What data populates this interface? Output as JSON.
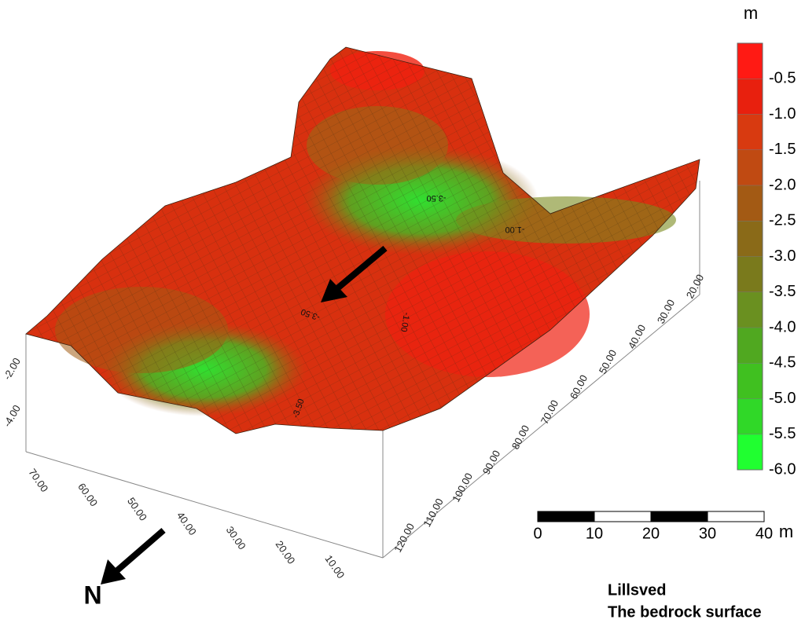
{
  "colorbar": {
    "unit": "m",
    "labels": [
      "-0.5",
      "-1.0",
      "-1.5",
      "-2.0",
      "-2.5",
      "-3.0",
      "-3.5",
      "-4.0",
      "-4.5",
      "-5.0",
      "-5.5",
      "-6.0"
    ],
    "colors": [
      "#ff1a14",
      "#e8200e",
      "#d83a10",
      "#c04a12",
      "#a35a14",
      "#8a6a18",
      "#7a7a1c",
      "#6a9020",
      "#50a820",
      "#40c020",
      "#30d828",
      "#20ff30"
    ]
  },
  "x_axis": {
    "labels": [
      "70.00",
      "60.00",
      "50.00",
      "40.00",
      "30.00",
      "20.00",
      "10.00"
    ]
  },
  "y_axis": {
    "labels": [
      "120.00",
      "110.00",
      "100.00",
      "90.00",
      "80.00",
      "70.00",
      "60.00",
      "50.00",
      "40.00",
      "30.00",
      "20.00"
    ]
  },
  "z_axis": {
    "labels": [
      "-2.00",
      "-4.00"
    ]
  },
  "contour_labels": [
    "-3.50",
    "-1.00",
    "-3.50",
    "-1.00",
    "-3.50"
  ],
  "scale_bar": {
    "labels": [
      "0",
      "10",
      "20",
      "30",
      "40"
    ],
    "unit": "m"
  },
  "north": "N",
  "caption": [
    "Lillsved",
    "The bedrock surface"
  ]
}
